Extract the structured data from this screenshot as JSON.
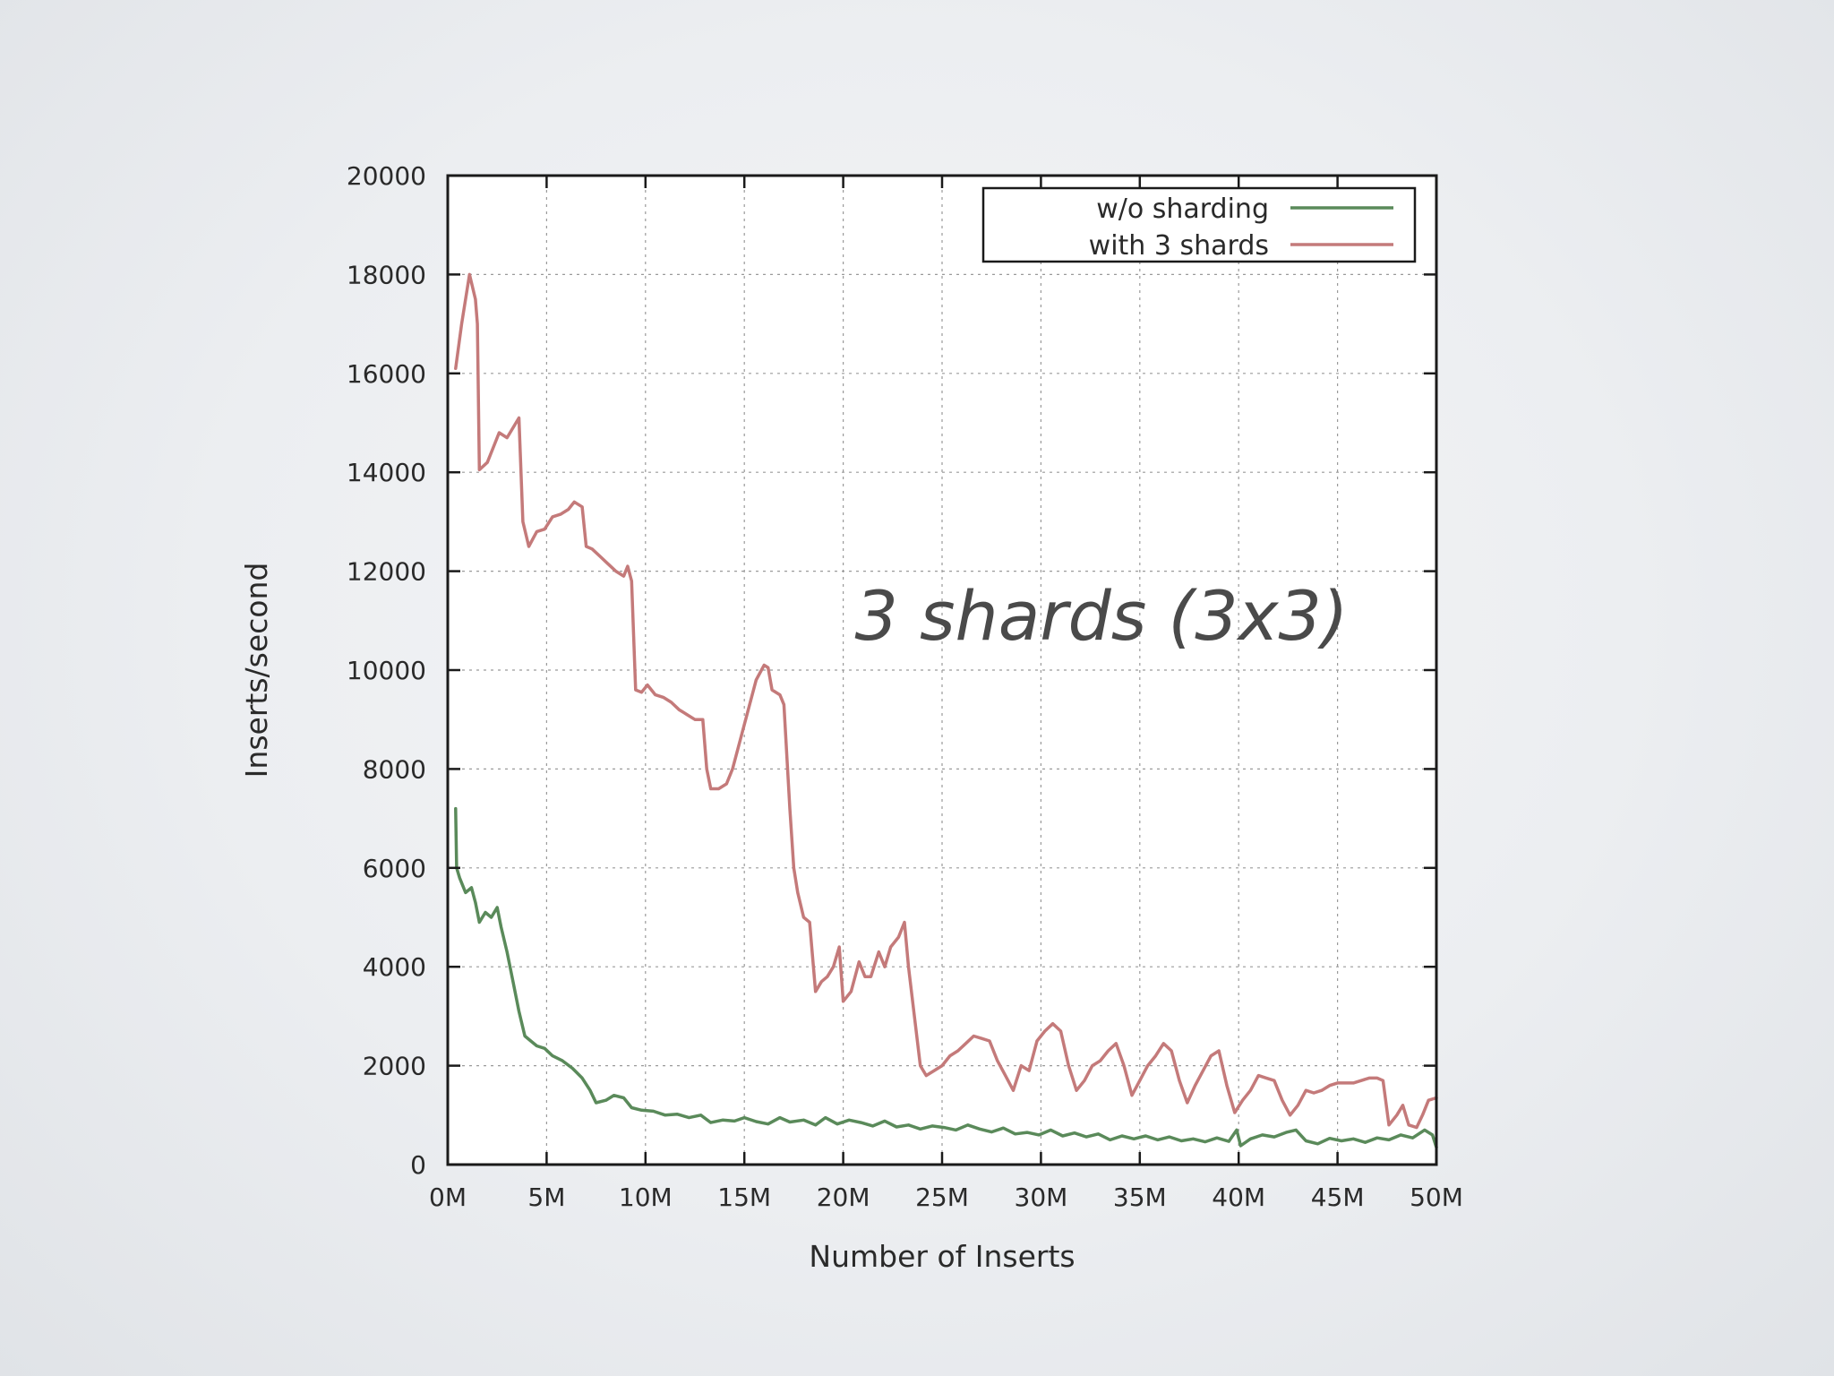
{
  "chart_data": {
    "type": "line",
    "title": "",
    "annotation": "3 shards (3x3)",
    "xlabel": "Number of Inserts",
    "ylabel": "Inserts/second",
    "xlim": [
      0,
      50
    ],
    "ylim": [
      0,
      20000
    ],
    "x_ticks": [
      "0M",
      "5M",
      "10M",
      "15M",
      "20M",
      "25M",
      "30M",
      "35M",
      "40M",
      "45M",
      "50M"
    ],
    "y_ticks": [
      "0",
      "2000",
      "4000",
      "6000",
      "8000",
      "10000",
      "12000",
      "14000",
      "16000",
      "18000",
      "20000"
    ],
    "grid": true,
    "legend_position": "top-right",
    "series": [
      {
        "name": "w/o sharding",
        "color": "#5a8a5a",
        "points": [
          [
            0.4,
            7200
          ],
          [
            0.45,
            6000
          ],
          [
            0.6,
            5800
          ],
          [
            0.9,
            5500
          ],
          [
            1.2,
            5600
          ],
          [
            1.4,
            5300
          ],
          [
            1.6,
            4900
          ],
          [
            1.9,
            5100
          ],
          [
            2.2,
            5000
          ],
          [
            2.5,
            5200
          ],
          [
            2.7,
            4800
          ],
          [
            3.0,
            4300
          ],
          [
            3.3,
            3700
          ],
          [
            3.6,
            3100
          ],
          [
            3.9,
            2600
          ],
          [
            4.2,
            2500
          ],
          [
            4.5,
            2400
          ],
          [
            4.9,
            2350
          ],
          [
            5.3,
            2200
          ],
          [
            5.8,
            2100
          ],
          [
            6.3,
            1950
          ],
          [
            6.8,
            1750
          ],
          [
            7.2,
            1500
          ],
          [
            7.5,
            1250
          ],
          [
            8.0,
            1300
          ],
          [
            8.4,
            1400
          ],
          [
            8.9,
            1350
          ],
          [
            9.3,
            1150
          ],
          [
            9.8,
            1100
          ],
          [
            10.4,
            1080
          ],
          [
            11.0,
            1000
          ],
          [
            11.6,
            1020
          ],
          [
            12.2,
            950
          ],
          [
            12.8,
            1000
          ],
          [
            13.3,
            850
          ],
          [
            13.9,
            900
          ],
          [
            14.5,
            880
          ],
          [
            15.0,
            950
          ],
          [
            15.6,
            870
          ],
          [
            16.2,
            820
          ],
          [
            16.8,
            950
          ],
          [
            17.3,
            860
          ],
          [
            18.0,
            900
          ],
          [
            18.6,
            800
          ],
          [
            19.1,
            950
          ],
          [
            19.7,
            820
          ],
          [
            20.3,
            900
          ],
          [
            20.9,
            850
          ],
          [
            21.5,
            780
          ],
          [
            22.1,
            880
          ],
          [
            22.7,
            760
          ],
          [
            23.3,
            800
          ],
          [
            23.9,
            720
          ],
          [
            24.5,
            780
          ],
          [
            25.1,
            750
          ],
          [
            25.7,
            700
          ],
          [
            26.3,
            800
          ],
          [
            26.9,
            720
          ],
          [
            27.5,
            660
          ],
          [
            28.1,
            740
          ],
          [
            28.7,
            620
          ],
          [
            29.3,
            650
          ],
          [
            29.9,
            600
          ],
          [
            30.5,
            700
          ],
          [
            31.1,
            580
          ],
          [
            31.7,
            640
          ],
          [
            32.3,
            560
          ],
          [
            32.9,
            620
          ],
          [
            33.5,
            500
          ],
          [
            34.1,
            580
          ],
          [
            34.7,
            520
          ],
          [
            35.3,
            580
          ],
          [
            35.9,
            500
          ],
          [
            36.5,
            560
          ],
          [
            37.1,
            480
          ],
          [
            37.7,
            520
          ],
          [
            38.3,
            460
          ],
          [
            38.9,
            540
          ],
          [
            39.5,
            470
          ],
          [
            39.9,
            700
          ],
          [
            40.1,
            380
          ],
          [
            40.6,
            520
          ],
          [
            41.2,
            600
          ],
          [
            41.8,
            560
          ],
          [
            42.4,
            650
          ],
          [
            42.9,
            700
          ],
          [
            43.4,
            480
          ],
          [
            44.0,
            420
          ],
          [
            44.6,
            530
          ],
          [
            45.2,
            480
          ],
          [
            45.8,
            520
          ],
          [
            46.4,
            450
          ],
          [
            47.0,
            540
          ],
          [
            47.6,
            500
          ],
          [
            48.2,
            600
          ],
          [
            48.8,
            540
          ],
          [
            49.4,
            700
          ],
          [
            49.8,
            600
          ],
          [
            50.0,
            350
          ]
        ]
      },
      {
        "name": "with 3 shards",
        "color": "#c47a7a",
        "points": [
          [
            0.4,
            16100
          ],
          [
            0.7,
            17000
          ],
          [
            1.1,
            18000
          ],
          [
            1.4,
            17500
          ],
          [
            1.5,
            17000
          ],
          [
            1.6,
            14050
          ],
          [
            2.0,
            14200
          ],
          [
            2.3,
            14500
          ],
          [
            2.6,
            14800
          ],
          [
            3.0,
            14700
          ],
          [
            3.3,
            14900
          ],
          [
            3.6,
            15100
          ],
          [
            3.8,
            13000
          ],
          [
            4.1,
            12500
          ],
          [
            4.5,
            12800
          ],
          [
            4.9,
            12850
          ],
          [
            5.3,
            13100
          ],
          [
            5.7,
            13150
          ],
          [
            6.1,
            13250
          ],
          [
            6.4,
            13400
          ],
          [
            6.8,
            13300
          ],
          [
            7.0,
            12500
          ],
          [
            7.3,
            12450
          ],
          [
            7.7,
            12300
          ],
          [
            8.1,
            12150
          ],
          [
            8.5,
            12000
          ],
          [
            8.9,
            11900
          ],
          [
            9.1,
            12100
          ],
          [
            9.3,
            11800
          ],
          [
            9.5,
            9600
          ],
          [
            9.8,
            9550
          ],
          [
            10.1,
            9700
          ],
          [
            10.5,
            9500
          ],
          [
            10.9,
            9450
          ],
          [
            11.3,
            9350
          ],
          [
            11.7,
            9200
          ],
          [
            12.1,
            9100
          ],
          [
            12.5,
            9000
          ],
          [
            12.9,
            9000
          ],
          [
            13.1,
            8000
          ],
          [
            13.3,
            7600
          ],
          [
            13.7,
            7600
          ],
          [
            14.1,
            7700
          ],
          [
            14.4,
            8000
          ],
          [
            14.8,
            8600
          ],
          [
            15.2,
            9200
          ],
          [
            15.6,
            9800
          ],
          [
            16.0,
            10100
          ],
          [
            16.2,
            10050
          ],
          [
            16.4,
            9600
          ],
          [
            16.8,
            9500
          ],
          [
            17.0,
            9300
          ],
          [
            17.3,
            7200
          ],
          [
            17.5,
            6000
          ],
          [
            17.7,
            5500
          ],
          [
            18.0,
            5000
          ],
          [
            18.3,
            4900
          ],
          [
            18.6,
            3500
          ],
          [
            18.9,
            3700
          ],
          [
            19.2,
            3800
          ],
          [
            19.5,
            4000
          ],
          [
            19.8,
            4400
          ],
          [
            20.0,
            3300
          ],
          [
            20.4,
            3500
          ],
          [
            20.8,
            4100
          ],
          [
            21.1,
            3800
          ],
          [
            21.4,
            3800
          ],
          [
            21.8,
            4300
          ],
          [
            22.1,
            4000
          ],
          [
            22.4,
            4400
          ],
          [
            22.8,
            4600
          ],
          [
            23.1,
            4900
          ],
          [
            23.3,
            4000
          ],
          [
            23.6,
            3000
          ],
          [
            23.9,
            2000
          ],
          [
            24.2,
            1800
          ],
          [
            24.6,
            1900
          ],
          [
            25.0,
            2000
          ],
          [
            25.4,
            2200
          ],
          [
            25.8,
            2300
          ],
          [
            26.2,
            2450
          ],
          [
            26.6,
            2600
          ],
          [
            27.0,
            2550
          ],
          [
            27.4,
            2500
          ],
          [
            27.8,
            2100
          ],
          [
            28.2,
            1800
          ],
          [
            28.6,
            1500
          ],
          [
            29.0,
            2000
          ],
          [
            29.4,
            1900
          ],
          [
            29.8,
            2500
          ],
          [
            30.2,
            2700
          ],
          [
            30.6,
            2850
          ],
          [
            31.0,
            2700
          ],
          [
            31.4,
            2000
          ],
          [
            31.8,
            1500
          ],
          [
            32.2,
            1700
          ],
          [
            32.6,
            2000
          ],
          [
            33.0,
            2100
          ],
          [
            33.4,
            2300
          ],
          [
            33.8,
            2450
          ],
          [
            34.2,
            2000
          ],
          [
            34.6,
            1400
          ],
          [
            35.0,
            1700
          ],
          [
            35.4,
            2000
          ],
          [
            35.8,
            2200
          ],
          [
            36.2,
            2450
          ],
          [
            36.6,
            2300
          ],
          [
            37.0,
            1700
          ],
          [
            37.4,
            1250
          ],
          [
            37.8,
            1600
          ],
          [
            38.2,
            1900
          ],
          [
            38.6,
            2200
          ],
          [
            39.0,
            2300
          ],
          [
            39.4,
            1600
          ],
          [
            39.8,
            1050
          ],
          [
            40.2,
            1300
          ],
          [
            40.6,
            1500
          ],
          [
            41.0,
            1800
          ],
          [
            41.4,
            1750
          ],
          [
            41.8,
            1700
          ],
          [
            42.2,
            1300
          ],
          [
            42.6,
            1000
          ],
          [
            43.0,
            1200
          ],
          [
            43.4,
            1500
          ],
          [
            43.8,
            1450
          ],
          [
            44.2,
            1500
          ],
          [
            44.6,
            1600
          ],
          [
            45.0,
            1650
          ],
          [
            45.4,
            1650
          ],
          [
            45.8,
            1650
          ],
          [
            46.2,
            1700
          ],
          [
            46.6,
            1750
          ],
          [
            47.0,
            1750
          ],
          [
            47.3,
            1700
          ],
          [
            47.6,
            800
          ],
          [
            48.0,
            1000
          ],
          [
            48.3,
            1200
          ],
          [
            48.6,
            800
          ],
          [
            49.0,
            750
          ],
          [
            49.3,
            1000
          ],
          [
            49.6,
            1300
          ],
          [
            50.0,
            1350
          ]
        ]
      }
    ]
  }
}
